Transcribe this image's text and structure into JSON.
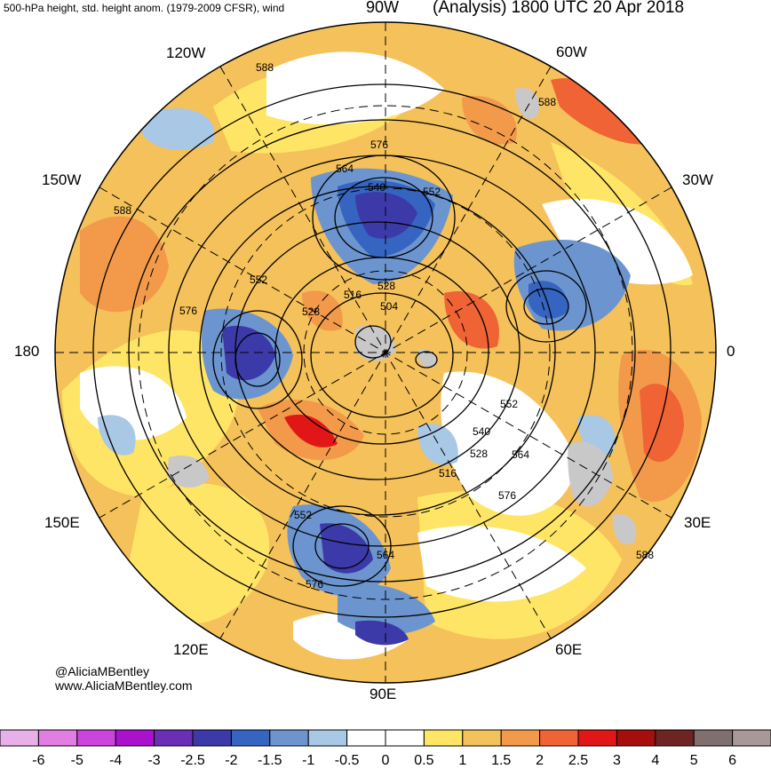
{
  "header": {
    "title_left": "500-hPa height, std. height anom. (1979-2009 CFSR), wind",
    "title_right": "(Analysis) 1800 UTC 20 Apr 2018"
  },
  "longitude_labels": {
    "w90": "90W",
    "w60": "60W",
    "w120": "120W",
    "w150": "150W",
    "w30": "30W",
    "lon180": "180",
    "lon0": "0",
    "e150": "150E",
    "e30": "30E",
    "e120": "120E",
    "e60": "60E",
    "e90": "90E"
  },
  "contour_labels": [
    "588",
    "588",
    "588",
    "588",
    "576",
    "576",
    "576",
    "576",
    "564",
    "564",
    "564",
    "552",
    "552",
    "552",
    "552",
    "540",
    "540",
    "528",
    "528",
    "528",
    "516",
    "516",
    "504"
  ],
  "credits": {
    "handle": "@AliciaMBentley",
    "site": "www.AliciaMBentley.com"
  },
  "colorbar": {
    "colors": [
      "#e8b0e8",
      "#e27de3",
      "#cc44dd",
      "#aa11cc",
      "#6b2fb5",
      "#3c3aa8",
      "#3565c0",
      "#6c95cf",
      "#a8c8e6",
      "#ffffff",
      "#ffffff",
      "#ffe566",
      "#f5c15a",
      "#f29a4a",
      "#ef6334",
      "#e11717",
      "#a60e0e",
      "#6e2424",
      "#7f6f6f",
      "#a89898"
    ],
    "labels": [
      "-6",
      "-5",
      "-4",
      "-3",
      "-2.5",
      "-2",
      "-1.5",
      "-1",
      "-0.5",
      "0",
      "0.5",
      "1",
      "1.5",
      "2",
      "2.5",
      "3",
      "4",
      "5",
      "6"
    ]
  }
}
